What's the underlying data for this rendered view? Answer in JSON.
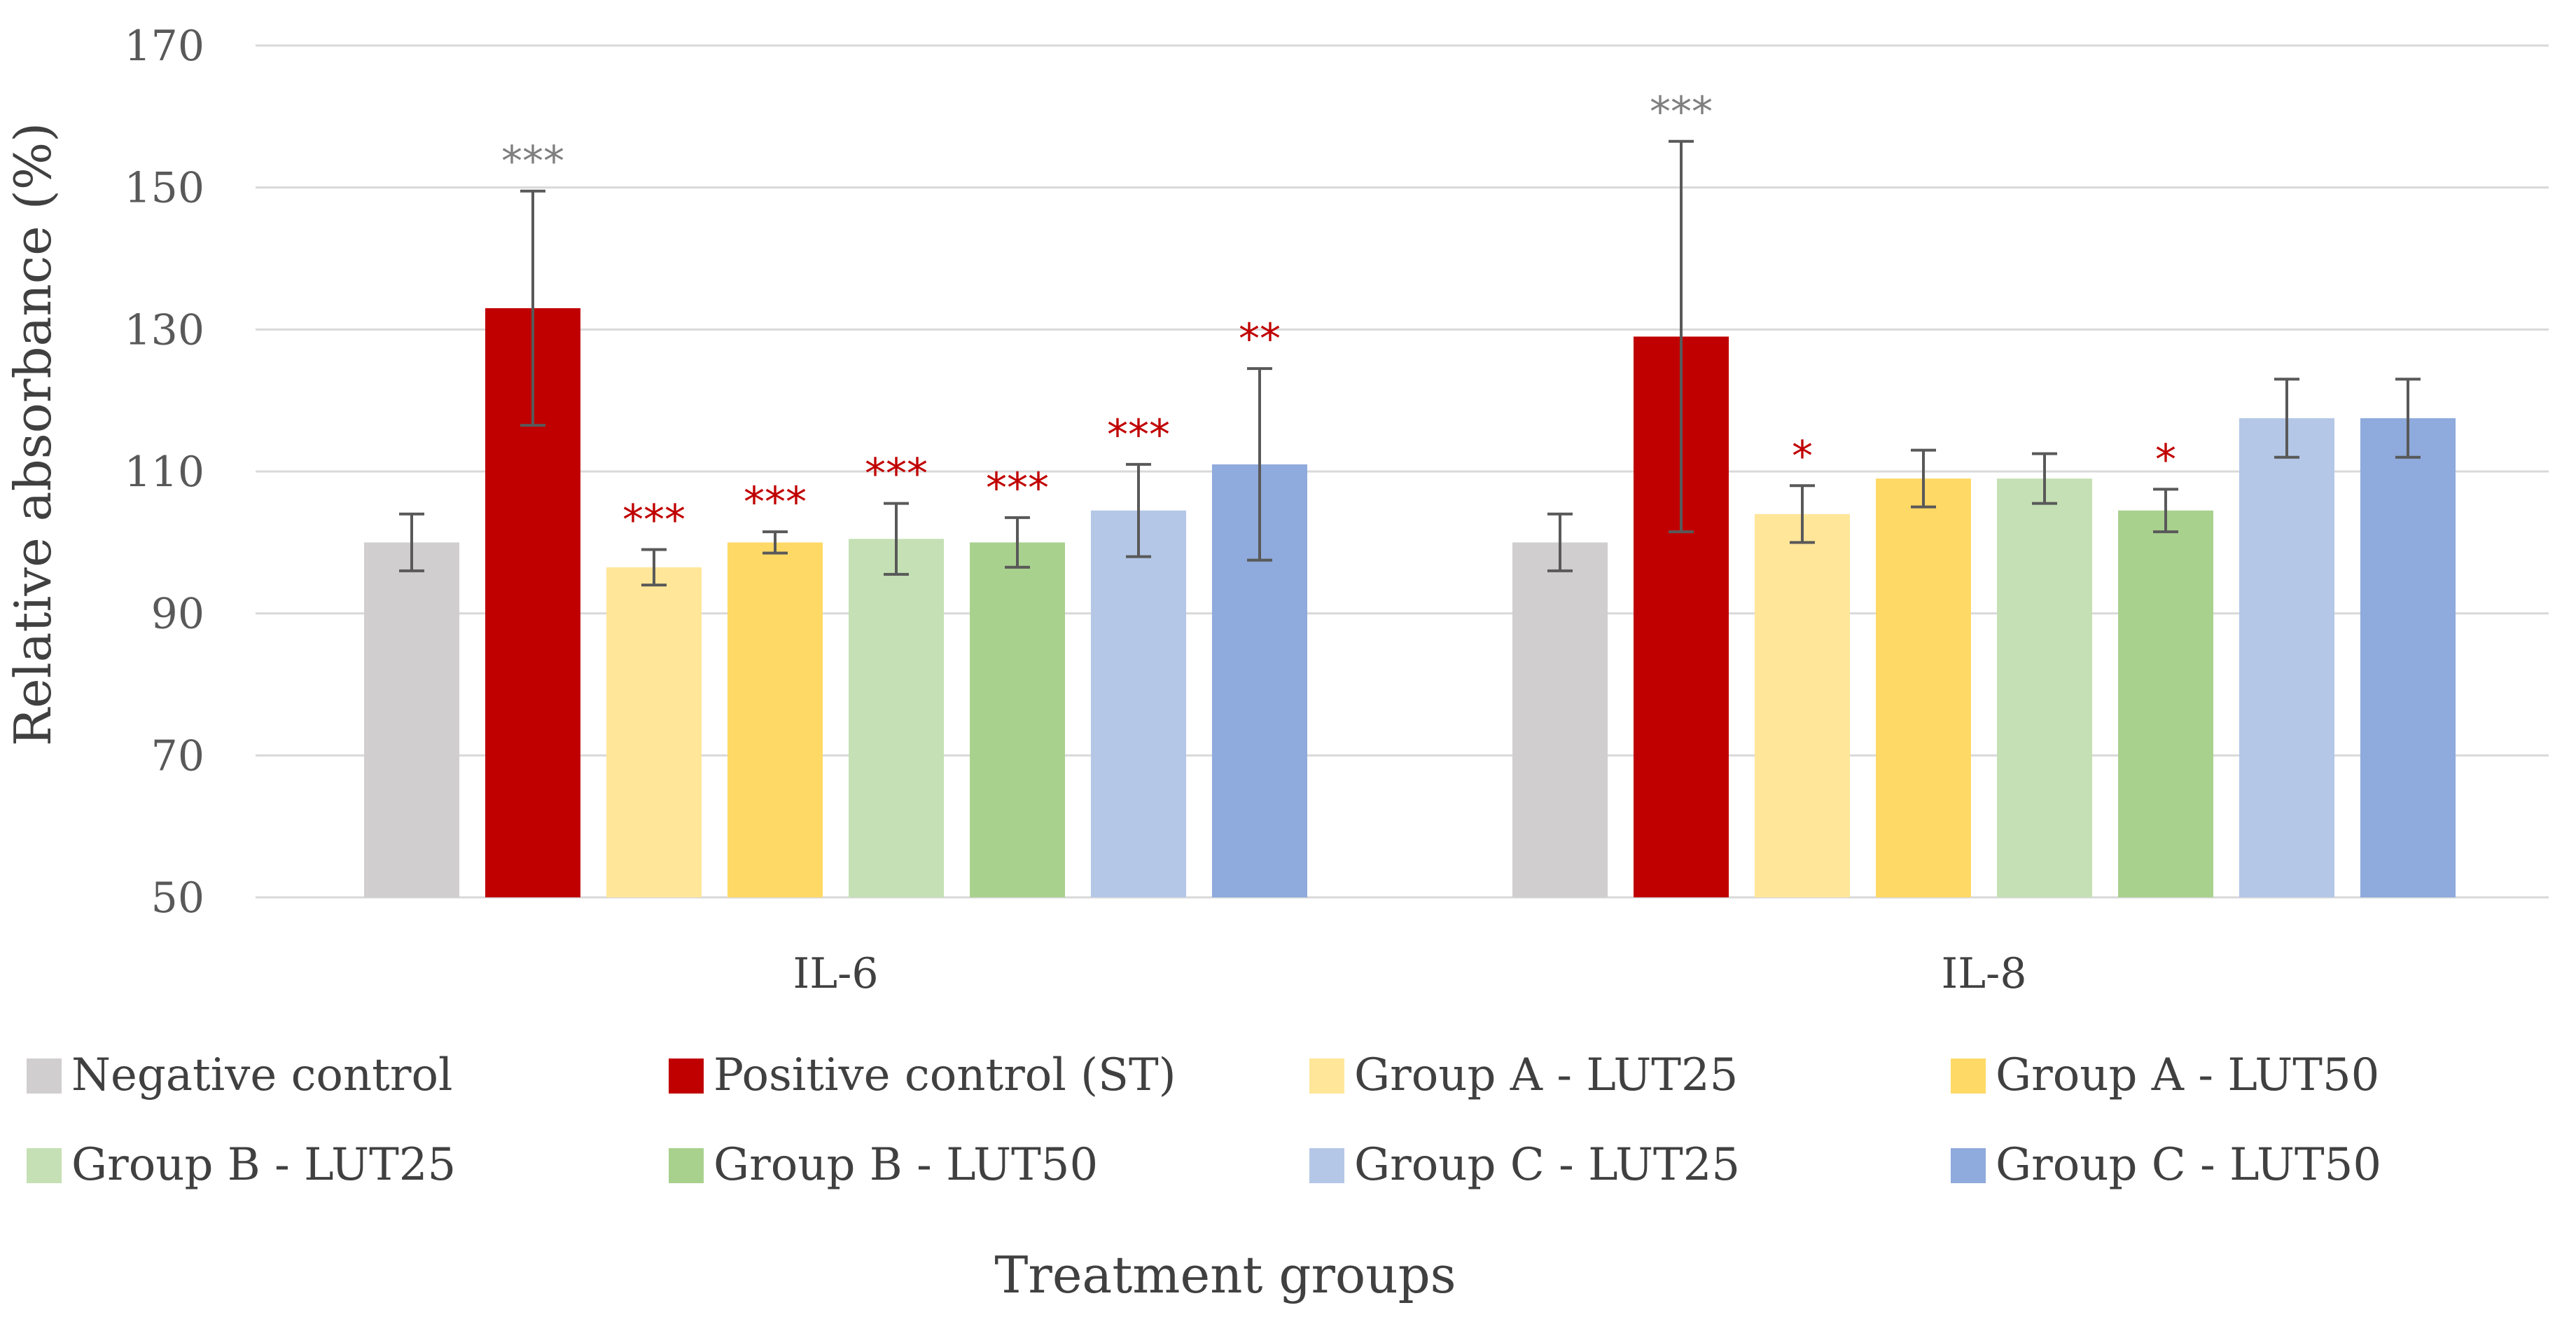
{
  "chart_data": {
    "type": "bar",
    "title": "",
    "xlabel": "Treatment groups",
    "ylabel": "Relative absorbance (%)",
    "ylim": [
      50,
      170
    ],
    "yticks": [
      50,
      70,
      90,
      110,
      130,
      150,
      170
    ],
    "grid": true,
    "legend_position": "bottom",
    "categories": [
      "IL-6",
      "IL-8"
    ],
    "series": [
      {
        "name": "Negative control",
        "color": "#D0CECE",
        "values": [
          100,
          100
        ],
        "errors": [
          4,
          4
        ],
        "significance": [
          "",
          ""
        ],
        "sig_colors": [
          "#7F7F7F",
          "#7F7F7F"
        ]
      },
      {
        "name": "Positive control (ST)",
        "color": "#C00000",
        "values": [
          133,
          129
        ],
        "errors": [
          16.5,
          27.5
        ],
        "significance": [
          "***",
          "***"
        ],
        "sig_colors": [
          "#7F7F7F",
          "#7F7F7F"
        ]
      },
      {
        "name": "Group A - LUT25",
        "color": "#FFE699",
        "values": [
          96.5,
          104
        ],
        "errors": [
          2.5,
          4
        ],
        "significance": [
          "***",
          "*"
        ],
        "sig_colors": [
          "#C00000",
          "#C00000"
        ]
      },
      {
        "name": "Group A - LUT50",
        "color": "#FFD966",
        "values": [
          100,
          109
        ],
        "errors": [
          1.5,
          4
        ],
        "significance": [
          "***",
          ""
        ],
        "sig_colors": [
          "#C00000",
          "#C00000"
        ]
      },
      {
        "name": "Group B - LUT25",
        "color": "#C5E0B4",
        "values": [
          100.5,
          109
        ],
        "errors": [
          5,
          3.5
        ],
        "significance": [
          "***",
          ""
        ],
        "sig_colors": [
          "#C00000",
          "#C00000"
        ]
      },
      {
        "name": "Group B - LUT50",
        "color": "#A9D18E",
        "values": [
          100,
          104.5
        ],
        "errors": [
          3.5,
          3
        ],
        "significance": [
          "***",
          "*"
        ],
        "sig_colors": [
          "#C00000",
          "#C00000"
        ]
      },
      {
        "name": "Group C - LUT25",
        "color": "#B4C7E7",
        "values": [
          104.5,
          117.5
        ],
        "errors": [
          6.5,
          5.5
        ],
        "significance": [
          "***",
          ""
        ],
        "sig_colors": [
          "#C00000",
          "#C00000"
        ]
      },
      {
        "name": "Group C - LUT50",
        "color": "#8FAADC",
        "values": [
          111,
          117.5
        ],
        "errors": [
          13.5,
          5.5
        ],
        "significance": [
          "**",
          ""
        ],
        "sig_colors": [
          "#C00000",
          "#C00000"
        ]
      }
    ],
    "colors": {
      "grid": "#D9D9D9",
      "error_bar": "#595959"
    }
  }
}
